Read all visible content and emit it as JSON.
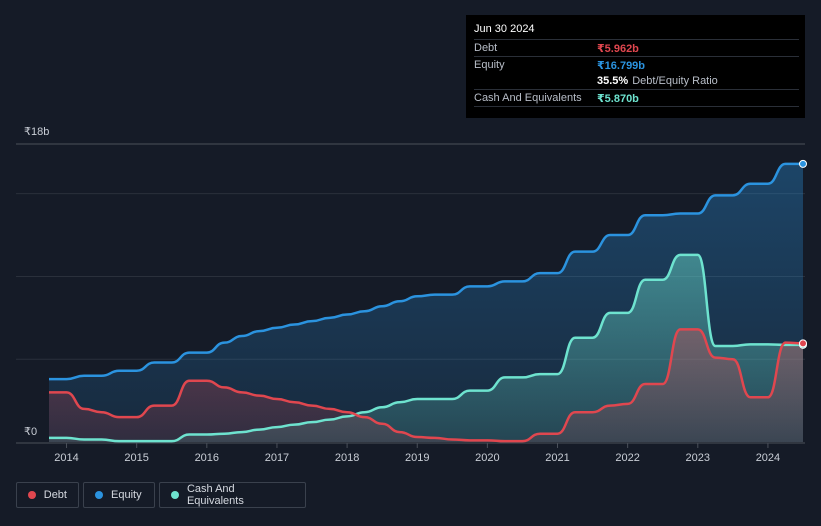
{
  "tooltip": {
    "date": "Jun 30 2024",
    "debt_label": "Debt",
    "debt_value": "₹5.962b",
    "equity_label": "Equity",
    "equity_value": "₹16.799b",
    "ratio_value": "35.5%",
    "ratio_label": "Debt/Equity Ratio",
    "cash_label": "Cash And Equivalents",
    "cash_value": "₹5.870b"
  },
  "legend": {
    "debt": "Debt",
    "equity": "Equity",
    "cash": "Cash And Equivalents"
  },
  "colors": {
    "debt": "#e0474f",
    "equity": "#2b93df",
    "cash": "#6ee3cf",
    "background": "#151b27"
  },
  "chart_data": {
    "type": "area",
    "title": "",
    "y_tick_labels": [
      "₹0",
      "₹18b"
    ],
    "ylim": [
      0,
      18
    ],
    "xlim": [
      2013.75,
      2024.5
    ],
    "x_ticks": [
      2014,
      2015,
      2016,
      2017,
      2018,
      2019,
      2020,
      2021,
      2022,
      2023,
      2024
    ],
    "x_tick_labels": [
      "2014",
      "2015",
      "2016",
      "2017",
      "2018",
      "2019",
      "2020",
      "2021",
      "2022",
      "2023",
      "2024"
    ],
    "gridlines": [
      5,
      10,
      15,
      18
    ],
    "series": [
      {
        "name": "Debt",
        "key": "debt",
        "x": [
          2013.75,
          2014.0,
          2014.25,
          2014.5,
          2014.75,
          2015.0,
          2015.25,
          2015.5,
          2015.75,
          2016.0,
          2016.25,
          2016.5,
          2016.75,
          2017.0,
          2017.25,
          2017.5,
          2017.75,
          2018.0,
          2018.25,
          2018.5,
          2018.75,
          2019.0,
          2019.25,
          2019.5,
          2019.75,
          2020.0,
          2020.25,
          2020.5,
          2020.75,
          2021.0,
          2021.25,
          2021.5,
          2021.75,
          2022.0,
          2022.25,
          2022.5,
          2022.75,
          2023.0,
          2023.25,
          2023.5,
          2023.75,
          2024.0,
          2024.25,
          2024.5
        ],
        "values": [
          3.0,
          3.0,
          2.0,
          1.8,
          1.5,
          1.5,
          2.2,
          2.2,
          3.7,
          3.7,
          3.3,
          3.0,
          2.8,
          2.6,
          2.4,
          2.2,
          2.0,
          1.8,
          1.5,
          1.1,
          0.6,
          0.3,
          0.25,
          0.15,
          0.1,
          0.1,
          0.05,
          0.05,
          0.5,
          0.5,
          1.8,
          1.8,
          2.2,
          2.3,
          3.5,
          3.5,
          6.8,
          6.8,
          5.1,
          5.0,
          2.7,
          2.7,
          6.0,
          5.96
        ]
      },
      {
        "name": "Equity",
        "key": "equity",
        "x": [
          2013.75,
          2014.0,
          2014.25,
          2014.5,
          2014.75,
          2015.0,
          2015.25,
          2015.5,
          2015.75,
          2016.0,
          2016.25,
          2016.5,
          2016.75,
          2017.0,
          2017.25,
          2017.5,
          2017.75,
          2018.0,
          2018.25,
          2018.5,
          2018.75,
          2019.0,
          2019.25,
          2019.5,
          2019.75,
          2020.0,
          2020.25,
          2020.5,
          2020.75,
          2021.0,
          2021.25,
          2021.5,
          2021.75,
          2022.0,
          2022.25,
          2022.5,
          2022.75,
          2023.0,
          2023.25,
          2023.5,
          2023.75,
          2024.0,
          2024.25,
          2024.5
        ],
        "values": [
          3.8,
          3.8,
          4.0,
          4.0,
          4.3,
          4.3,
          4.8,
          4.8,
          5.4,
          5.4,
          6.0,
          6.4,
          6.7,
          6.9,
          7.1,
          7.3,
          7.5,
          7.7,
          7.9,
          8.2,
          8.5,
          8.8,
          8.9,
          8.9,
          9.4,
          9.4,
          9.7,
          9.7,
          10.2,
          10.2,
          11.5,
          11.5,
          12.5,
          12.5,
          13.7,
          13.7,
          13.8,
          13.8,
          14.9,
          14.9,
          15.6,
          15.6,
          16.8,
          16.8
        ]
      },
      {
        "name": "Cash And Equivalents",
        "key": "cash",
        "x": [
          2013.75,
          2014.0,
          2014.25,
          2014.5,
          2014.75,
          2015.0,
          2015.25,
          2015.5,
          2015.75,
          2016.0,
          2016.25,
          2016.5,
          2016.75,
          2017.0,
          2017.25,
          2017.5,
          2017.75,
          2018.0,
          2018.25,
          2018.5,
          2018.75,
          2019.0,
          2019.25,
          2019.5,
          2019.75,
          2020.0,
          2020.25,
          2020.5,
          2020.75,
          2021.0,
          2021.25,
          2021.5,
          2021.75,
          2022.0,
          2022.25,
          2022.5,
          2022.75,
          2023.0,
          2023.25,
          2023.5,
          2023.75,
          2024.0,
          2024.25,
          2024.5
        ],
        "values": [
          0.25,
          0.25,
          0.15,
          0.15,
          0.05,
          0.05,
          0.05,
          0.05,
          0.45,
          0.45,
          0.5,
          0.6,
          0.75,
          0.9,
          1.05,
          1.2,
          1.35,
          1.55,
          1.8,
          2.1,
          2.4,
          2.6,
          2.6,
          2.6,
          3.1,
          3.1,
          3.9,
          3.9,
          4.1,
          4.1,
          6.3,
          6.3,
          7.8,
          7.8,
          9.8,
          9.8,
          11.3,
          11.3,
          5.8,
          5.8,
          5.9,
          5.9,
          5.87,
          5.87
        ]
      }
    ]
  }
}
